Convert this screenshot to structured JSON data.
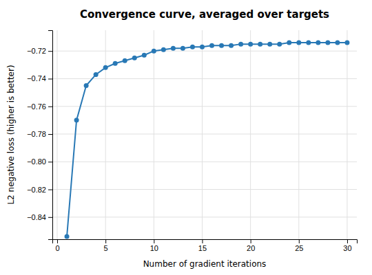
{
  "chart_data": {
    "type": "line",
    "title": "Convergence curve, averaged over targets",
    "xlabel": "Number of gradient iterations",
    "ylabel": "L2 negative loss (higher is better)",
    "x": [
      1,
      2,
      3,
      4,
      5,
      6,
      7,
      8,
      9,
      10,
      11,
      12,
      13,
      14,
      15,
      16,
      17,
      18,
      19,
      20,
      21,
      22,
      23,
      24,
      25,
      26,
      27,
      28,
      29,
      30
    ],
    "y": [
      -0.854,
      -0.77,
      -0.745,
      -0.737,
      -0.732,
      -0.729,
      -0.727,
      -0.725,
      -0.723,
      -0.72,
      -0.719,
      -0.718,
      -0.718,
      -0.717,
      -0.717,
      -0.716,
      -0.716,
      -0.716,
      -0.715,
      -0.715,
      -0.715,
      -0.715,
      -0.715,
      -0.714,
      -0.714,
      -0.714,
      -0.714,
      -0.714,
      -0.714,
      -0.714
    ],
    "color": "#2878b5",
    "marker": "circle",
    "xlim": [
      -0.5,
      31
    ],
    "ylim": [
      -0.856,
      -0.705
    ],
    "xticks": [
      0,
      5,
      10,
      15,
      20,
      25,
      30
    ],
    "yticks": [
      {
        "value": -0.84,
        "label": "−0.84"
      },
      {
        "value": -0.82,
        "label": "−0.82"
      },
      {
        "value": -0.8,
        "label": "−0.80"
      },
      {
        "value": -0.78,
        "label": "−0.78"
      },
      {
        "value": -0.76,
        "label": "−0.76"
      },
      {
        "value": -0.74,
        "label": "−0.74"
      },
      {
        "value": -0.72,
        "label": "−0.72"
      }
    ],
    "grid": true
  }
}
